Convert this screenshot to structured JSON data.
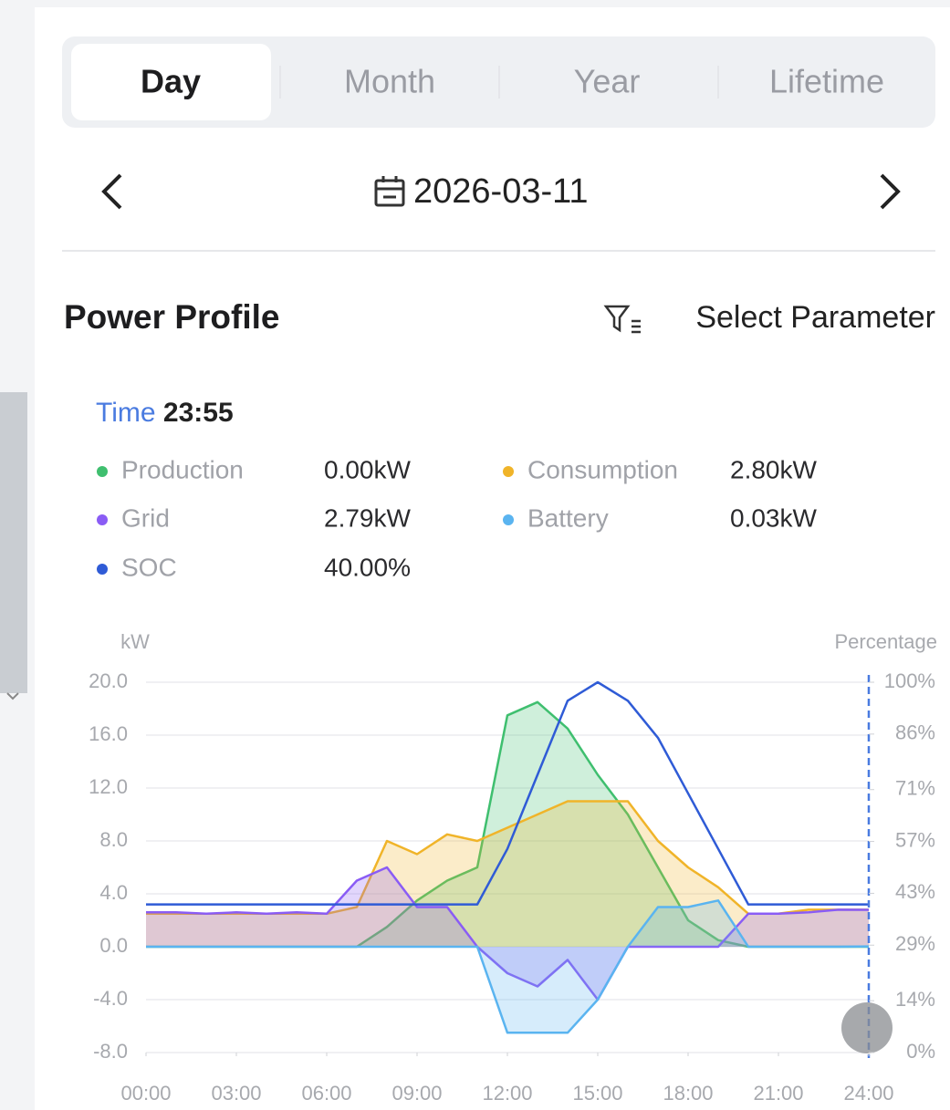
{
  "tabs": [
    "Day",
    "Month",
    "Year",
    "Lifetime"
  ],
  "date": "2026-03-11",
  "section_title": "Power Profile",
  "select_parameter": "Select Parameter",
  "tooltip": {
    "label": "Time",
    "time": "23:55",
    "values": [
      "0.00kW",
      "2.80kW",
      "2.79kW",
      "0.03kW",
      "40.00%"
    ]
  },
  "chart_data": {
    "type": "line",
    "x": [
      0,
      1,
      2,
      3,
      4,
      5,
      6,
      7,
      8,
      9,
      10,
      11,
      12,
      13,
      14,
      15,
      16,
      17,
      18,
      19,
      20,
      21,
      22,
      23,
      24
    ],
    "xlim": [
      0,
      24
    ],
    "xticks": [
      {
        "value": 0,
        "label": "00:00"
      },
      {
        "value": 3,
        "label": "03:00"
      },
      {
        "value": 6,
        "label": "06:00"
      },
      {
        "value": 9,
        "label": "09:00"
      },
      {
        "value": 12,
        "label": "12:00"
      },
      {
        "value": 15,
        "label": "15:00"
      },
      {
        "value": 18,
        "label": "18:00"
      },
      {
        "value": 21,
        "label": "21:00"
      },
      {
        "value": 24,
        "label": "24:00"
      }
    ],
    "ylabel": "kW",
    "y2label": "Percentage",
    "ylim": [
      -8,
      20
    ],
    "yticks": [
      {
        "value": -8,
        "label": "-8.0"
      },
      {
        "value": -4,
        "label": "-4.0"
      },
      {
        "value": 0,
        "label": "0.0"
      },
      {
        "value": 4,
        "label": "4.0"
      },
      {
        "value": 8,
        "label": "8.0"
      },
      {
        "value": 12,
        "label": "12.0"
      },
      {
        "value": 16,
        "label": "16.0"
      },
      {
        "value": 20,
        "label": "20.0"
      }
    ],
    "y2lim": [
      0,
      100
    ],
    "y2ticks": [
      {
        "value": 0,
        "label": "0%"
      },
      {
        "value": 14,
        "label": "14%"
      },
      {
        "value": 29,
        "label": "29%"
      },
      {
        "value": 43,
        "label": "43%"
      },
      {
        "value": 57,
        "label": "57%"
      },
      {
        "value": 71,
        "label": "71%"
      },
      {
        "value": 86,
        "label": "86%"
      },
      {
        "value": 100,
        "label": "100%"
      }
    ],
    "grid": true,
    "series": [
      {
        "name": "Production",
        "color": "#3fbf6f",
        "values": [
          0,
          0,
          0,
          0,
          0,
          0,
          0,
          0,
          1.5,
          3.5,
          5,
          6,
          17.5,
          18.5,
          16.5,
          13,
          10,
          6,
          2,
          0.5,
          0,
          0,
          0,
          0,
          0
        ]
      },
      {
        "name": "Consumption",
        "color": "#f0b429",
        "values": [
          2.5,
          2.5,
          2.5,
          2.5,
          2.5,
          2.5,
          2.5,
          3,
          8,
          7,
          8.5,
          8,
          9,
          10,
          11,
          11,
          11,
          8,
          6,
          4.5,
          2.5,
          2.5,
          2.8,
          2.8,
          2.8
        ]
      },
      {
        "name": "Grid",
        "color": "#8a5cf5",
        "values": [
          2.6,
          2.6,
          2.5,
          2.6,
          2.5,
          2.6,
          2.5,
          5,
          6,
          3,
          3,
          0,
          -2,
          -3,
          -1,
          -4,
          0,
          0,
          0,
          0,
          2.5,
          2.5,
          2.6,
          2.8,
          2.79
        ]
      },
      {
        "name": "Battery",
        "color": "#5ab4f0",
        "values": [
          0,
          0,
          0,
          0,
          0,
          0,
          0,
          0,
          0,
          0,
          0,
          0,
          -6.5,
          -6.5,
          -6.5,
          -4,
          0,
          3,
          3,
          3.5,
          0,
          0,
          0,
          0,
          0.03
        ]
      },
      {
        "name": "SOC",
        "color": "#2f5bd6",
        "axis": "y2",
        "values": [
          40,
          40,
          40,
          40,
          40,
          40,
          40,
          40,
          40,
          40,
          40,
          40,
          55,
          75,
          95,
          100,
          95,
          85,
          70,
          55,
          40,
          40,
          40,
          40,
          40
        ]
      }
    ]
  }
}
